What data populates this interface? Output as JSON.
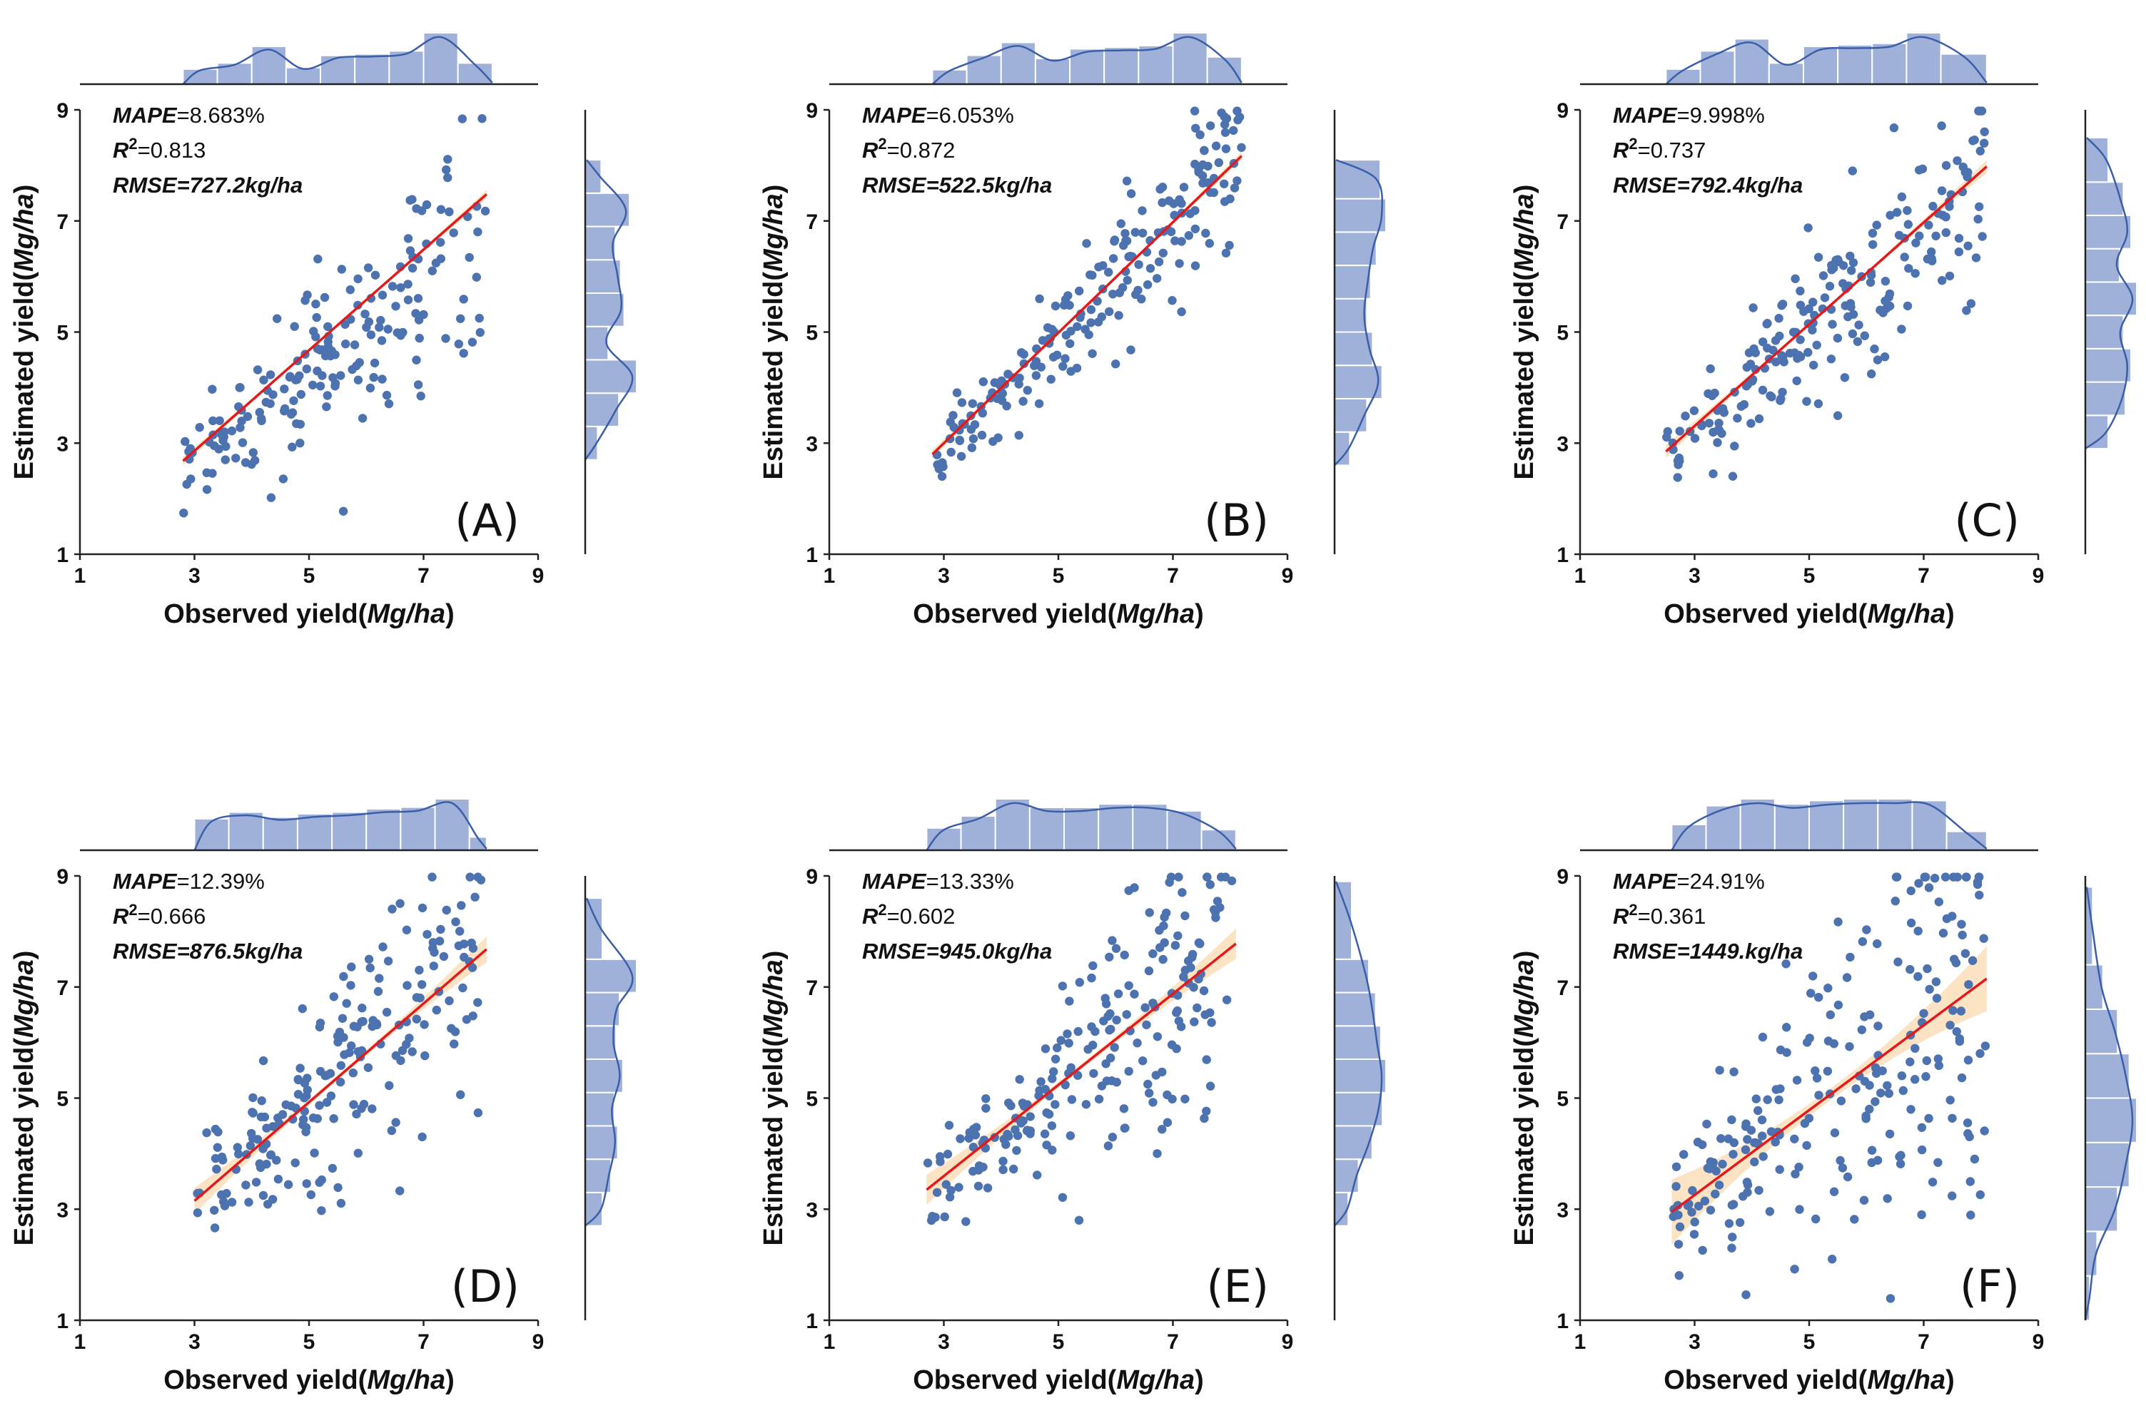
{
  "figure": {
    "xlabel_prefix": "Observed yield(",
    "ylabel_prefix": "Estimated yield(",
    "unit_label": "Mg/ha",
    "label_suffix": ")",
    "tick_labels": [
      "1",
      "3",
      "5",
      "7",
      "9"
    ],
    "metric_names": {
      "mape": "MAPE",
      "r2": "R",
      "r2_superscript": "2",
      "rmse": "RMSE"
    },
    "colors": {
      "points": "#4c72b0",
      "bars": "#9fb1d8",
      "bar_edge": "#ffffff",
      "kde": "#3b5ea8",
      "fit_line": "#e6181a",
      "confidence_band": "#fbe3c4",
      "axis": "#222222"
    }
  },
  "chart_data": [
    {
      "type": "scatter",
      "panel_label": "(A)",
      "title": "",
      "xlabel": "Observed yield(Mg/ha)",
      "ylabel": "Estimated yield(Mg/ha)",
      "xlim": [
        1,
        9
      ],
      "ylim": [
        1,
        9
      ],
      "xticks": [
        1,
        3,
        5,
        7,
        9
      ],
      "yticks": [
        1,
        3,
        5,
        7,
        9
      ],
      "metrics": {
        "mape": "=8.683%",
        "r2": "=0.813",
        "rmse": "=727.2kg/ha"
      },
      "fit": {
        "x": [
          2.8,
          8.1
        ],
        "y": [
          2.68,
          7.48
        ]
      },
      "band_halfwidth": 0.04,
      "seed": 11,
      "n_points": 190,
      "x_range": [
        2.8,
        8.1
      ],
      "scatter_sigma": 0.55,
      "below_bias": 0.45,
      "x_hist": {
        "bins": [
          2.8,
          3.4,
          4.0,
          4.6,
          5.2,
          5.8,
          6.4,
          7.0,
          7.6,
          8.2
        ],
        "counts": [
          10,
          14,
          25,
          11,
          19,
          20,
          22,
          34,
          14
        ]
      },
      "y_hist": {
        "bins": [
          2.7,
          3.3,
          3.9,
          4.5,
          5.1,
          5.7,
          6.3,
          6.9,
          7.5,
          8.1
        ],
        "counts": [
          7,
          19,
          29,
          13,
          22,
          20,
          17,
          25,
          9
        ]
      }
    },
    {
      "type": "scatter",
      "panel_label": "(B)",
      "title": "",
      "xlabel": "Observed yield(Mg/ha)",
      "ylabel": "Estimated yield(Mg/ha)",
      "xlim": [
        1,
        9
      ],
      "ylim": [
        1,
        9
      ],
      "xticks": [
        1,
        3,
        5,
        7,
        9
      ],
      "yticks": [
        1,
        3,
        5,
        7,
        9
      ],
      "metrics": {
        "mape": "=6.053%",
        "r2": "=0.872",
        "rmse": "=522.5kg/ha"
      },
      "fit": {
        "x": [
          2.8,
          8.2
        ],
        "y": [
          2.8,
          8.17
        ]
      },
      "band_halfwidth": 0.04,
      "seed": 23,
      "n_points": 200,
      "x_range": [
        2.8,
        8.2
      ],
      "scatter_sigma": 0.38,
      "below_bias": 0.12,
      "x_hist": {
        "bins": [
          2.8,
          3.4,
          4.0,
          4.6,
          5.2,
          5.8,
          6.4,
          7.0,
          7.6,
          8.2
        ],
        "counts": [
          9,
          18,
          26,
          16,
          22,
          23,
          24,
          32,
          17
        ]
      },
      "y_hist": {
        "bins": [
          2.6,
          3.2,
          3.8,
          4.4,
          5.0,
          5.6,
          6.2,
          6.8,
          7.4,
          8.1
        ],
        "counts": [
          8,
          17,
          25,
          20,
          17,
          19,
          22,
          27,
          24
        ]
      }
    },
    {
      "type": "scatter",
      "panel_label": "(C)",
      "title": "",
      "xlabel": "Observed yield(Mg/ha)",
      "ylabel": "Estimated yield(Mg/ha)",
      "xlim": [
        1,
        9
      ],
      "ylim": [
        1,
        9
      ],
      "xticks": [
        1,
        3,
        5,
        7,
        9
      ],
      "yticks": [
        1,
        3,
        5,
        7,
        9
      ],
      "metrics": {
        "mape": "=9.998%",
        "r2": "=0.737",
        "rmse": "=792.4kg/ha"
      },
      "fit": {
        "x": [
          2.5,
          8.1
        ],
        "y": [
          2.85,
          7.98
        ]
      },
      "band_halfwidth": 0.06,
      "seed": 37,
      "n_points": 210,
      "x_range": [
        2.5,
        8.1
      ],
      "scatter_sigma": 0.58,
      "below_bias": 0.15,
      "x_hist": {
        "bins": [
          2.5,
          3.1,
          3.7,
          4.3,
          4.9,
          5.5,
          6.1,
          6.7,
          7.3,
          8.1
        ],
        "counts": [
          10,
          22,
          30,
          14,
          25,
          26,
          27,
          34,
          20
        ]
      },
      "y_hist": {
        "bins": [
          2.9,
          3.5,
          4.1,
          4.7,
          5.3,
          5.9,
          6.5,
          7.1,
          7.7,
          8.5
        ],
        "counts": [
          12,
          21,
          24,
          20,
          27,
          18,
          24,
          20,
          12
        ]
      }
    },
    {
      "type": "scatter",
      "panel_label": "(D)",
      "title": "",
      "xlabel": "Observed yield(Mg/ha)",
      "ylabel": "Estimated yield(Mg/ha)",
      "xlim": [
        1,
        9
      ],
      "ylim": [
        1,
        9
      ],
      "xticks": [
        1,
        3,
        5,
        7,
        9
      ],
      "yticks": [
        1,
        3,
        5,
        7,
        9
      ],
      "metrics": {
        "mape": "=12.39%",
        "r2": "=0.666",
        "rmse": "=876.5kg/ha"
      },
      "fit": {
        "x": [
          3.0,
          8.1
        ],
        "y": [
          3.15,
          7.68
        ]
      },
      "band_halfwidth": 0.12,
      "seed": 53,
      "n_points": 200,
      "x_range": [
        3.0,
        8.1
      ],
      "scatter_sigma": 0.7,
      "below_bias": 0.0,
      "x_hist": {
        "bins": [
          3.0,
          3.6,
          4.2,
          4.8,
          5.4,
          6.0,
          6.6,
          7.2,
          7.8,
          8.1
        ],
        "counts": [
          19,
          23,
          20,
          22,
          23,
          25,
          26,
          31,
          8
        ]
      },
      "y_hist": {
        "bins": [
          2.7,
          3.3,
          3.9,
          4.5,
          5.1,
          5.7,
          6.3,
          6.9,
          7.5,
          8.6
        ],
        "counts": [
          10,
          15,
          19,
          17,
          22,
          18,
          20,
          30,
          10
        ]
      }
    },
    {
      "type": "scatter",
      "panel_label": "(E)",
      "title": "",
      "xlabel": "Observed yield(Mg/ha)",
      "ylabel": "Estimated yield(Mg/ha)",
      "xlim": [
        1,
        9
      ],
      "ylim": [
        1,
        9
      ],
      "xticks": [
        1,
        3,
        5,
        7,
        9
      ],
      "yticks": [
        1,
        3,
        5,
        7,
        9
      ],
      "metrics": {
        "mape": "=13.33%",
        "r2": "=0.602",
        "rmse": "=945.0kg/ha"
      },
      "fit": {
        "x": [
          2.7,
          8.1
        ],
        "y": [
          3.35,
          7.78
        ]
      },
      "band_halfwidth": 0.14,
      "seed": 71,
      "n_points": 210,
      "x_range": [
        2.7,
        8.1
      ],
      "scatter_sigma": 0.78,
      "below_bias": 0.0,
      "x_hist": {
        "bins": [
          2.7,
          3.3,
          3.9,
          4.5,
          5.1,
          5.7,
          6.3,
          6.9,
          7.5,
          8.1
        ],
        "counts": [
          13,
          20,
          30,
          25,
          25,
          27,
          27,
          23,
          12
        ]
      },
      "y_hist": {
        "bins": [
          2.7,
          3.3,
          3.9,
          4.5,
          5.1,
          5.7,
          6.3,
          6.9,
          7.5,
          8.9
        ],
        "counts": [
          8,
          14,
          22,
          28,
          30,
          27,
          24,
          20,
          10
        ]
      }
    },
    {
      "type": "scatter",
      "panel_label": "(F)",
      "title": "",
      "xlabel": "Observed yield(Mg/ha)",
      "ylabel": "Estimated yield(Mg/ha)",
      "xlim": [
        1,
        9
      ],
      "ylim": [
        1,
        9
      ],
      "xticks": [
        1,
        3,
        5,
        7,
        9
      ],
      "yticks": [
        1,
        3,
        5,
        7,
        9
      ],
      "metrics": {
        "mape": "=24.91%",
        "r2": "=0.361",
        "rmse": "=1449.kg/ha"
      },
      "fit": {
        "x": [
          2.6,
          8.1
        ],
        "y": [
          2.95,
          7.15
        ]
      },
      "band_halfwidth": 0.3,
      "seed": 89,
      "n_points": 230,
      "x_range": [
        2.6,
        8.1
      ],
      "scatter_sigma": 1.15,
      "below_bias": 0.0,
      "x_hist": {
        "bins": [
          2.6,
          3.2,
          3.8,
          4.4,
          5.0,
          5.6,
          6.2,
          6.8,
          7.4,
          8.1
        ],
        "counts": [
          15,
          26,
          30,
          27,
          29,
          30,
          30,
          29,
          11
        ]
      },
      "y_hist": {
        "bins": [
          1.0,
          1.8,
          2.6,
          3.4,
          4.2,
          5.0,
          5.8,
          6.6,
          7.4,
          8.8
        ],
        "counts": [
          3,
          8,
          22,
          30,
          35,
          30,
          22,
          12,
          5
        ]
      }
    }
  ]
}
